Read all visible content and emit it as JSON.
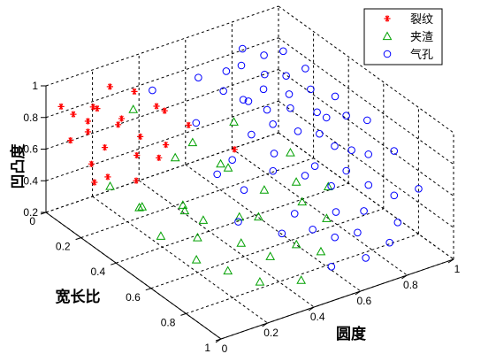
{
  "chart_data": {
    "type": "scatter",
    "projection": "3d",
    "xlabel": "圆度",
    "ylabel": "宽长比",
    "zlabel": "凹凸度",
    "xlim": [
      0,
      1
    ],
    "ylim": [
      0,
      1
    ],
    "zlim": [
      0.2,
      1
    ],
    "xticks": [
      "0",
      "0.2",
      "0.4",
      "0.6",
      "0.8",
      "1"
    ],
    "yticks": [
      "0",
      "0.2",
      "0.4",
      "0.6",
      "0.8",
      "1"
    ],
    "zticks": [
      "0.2",
      "0.4",
      "0.6",
      "0.8",
      "1"
    ],
    "grid": true,
    "legend": "top-right",
    "series": [
      {
        "name": "裂纹",
        "marker": "asterisk",
        "color": "#ff0000",
        "points": [
          [
            0.05,
            0.02,
            0.86
          ],
          [
            0.08,
            0.05,
            0.82
          ],
          [
            0.12,
            0.08,
            0.78
          ],
          [
            0.03,
            0.1,
            0.72
          ],
          [
            0.18,
            0.03,
            0.8
          ],
          [
            0.22,
            0.12,
            0.74
          ],
          [
            0.28,
            0.06,
            0.7
          ],
          [
            0.35,
            0.04,
            0.82
          ],
          [
            0.14,
            0.15,
            0.66
          ],
          [
            0.06,
            0.18,
            0.62
          ],
          [
            0.24,
            0.2,
            0.6
          ],
          [
            0.1,
            0.22,
            0.55
          ],
          [
            0.3,
            0.14,
            0.64
          ],
          [
            0.4,
            0.1,
            0.75
          ],
          [
            0.2,
            0.25,
            0.5
          ],
          [
            0.16,
            0.08,
            0.84
          ],
          [
            0.45,
            0.08,
            0.68
          ],
          [
            0.02,
            0.25,
            0.58
          ],
          [
            0.32,
            0.22,
            0.56
          ],
          [
            0.5,
            0.15,
            0.62
          ],
          [
            0.6,
            0.28,
            0.52
          ],
          [
            0.26,
            0.02,
            0.88
          ],
          [
            0.09,
            0.12,
            0.76
          ],
          [
            0.38,
            0.18,
            0.58
          ]
        ]
      },
      {
        "name": "夹渣",
        "marker": "triangle",
        "color": "#00a000",
        "points": [
          [
            0.05,
            0.3,
            0.58
          ],
          [
            0.1,
            0.4,
            0.5
          ],
          [
            0.08,
            0.55,
            0.45
          ],
          [
            0.15,
            0.35,
            0.44
          ],
          [
            0.2,
            0.6,
            0.42
          ],
          [
            0.25,
            0.45,
            0.48
          ],
          [
            0.12,
            0.7,
            0.4
          ],
          [
            0.3,
            0.5,
            0.4
          ],
          [
            0.18,
            0.8,
            0.38
          ],
          [
            0.35,
            0.65,
            0.35
          ],
          [
            0.28,
            0.85,
            0.3
          ],
          [
            0.4,
            0.75,
            0.32
          ],
          [
            0.22,
            0.5,
            0.5
          ],
          [
            0.45,
            0.4,
            0.6
          ],
          [
            0.5,
            0.55,
            0.36
          ],
          [
            0.33,
            0.3,
            0.62
          ],
          [
            0.55,
            0.7,
            0.28
          ],
          [
            0.42,
            0.9,
            0.28
          ],
          [
            0.6,
            0.45,
            0.4
          ],
          [
            0.48,
            0.2,
            0.56
          ],
          [
            0.38,
            0.6,
            0.46
          ],
          [
            0.65,
            0.6,
            0.42
          ],
          [
            0.52,
            0.35,
            0.5
          ],
          [
            0.7,
            0.5,
            0.44
          ],
          [
            0.58,
            0.8,
            0.3
          ],
          [
            0.75,
            0.4,
            0.52
          ],
          [
            0.62,
            0.25,
            0.66
          ],
          [
            0.68,
            0.7,
            0.38
          ],
          [
            0.8,
            0.55,
            0.4
          ],
          [
            0.3,
            0.1,
            0.78
          ]
        ]
      },
      {
        "name": "气孔",
        "marker": "circle",
        "color": "#0000ff",
        "points": [
          [
            0.65,
            0.15,
            0.76
          ],
          [
            0.7,
            0.1,
            0.82
          ],
          [
            0.72,
            0.2,
            0.7
          ],
          [
            0.78,
            0.08,
            0.8
          ],
          [
            0.8,
            0.18,
            0.72
          ],
          [
            0.75,
            0.3,
            0.62
          ],
          [
            0.85,
            0.12,
            0.74
          ],
          [
            0.88,
            0.22,
            0.68
          ],
          [
            0.82,
            0.35,
            0.58
          ],
          [
            0.9,
            0.05,
            0.78
          ],
          [
            0.92,
            0.15,
            0.72
          ],
          [
            0.68,
            0.4,
            0.55
          ],
          [
            0.95,
            0.25,
            0.7
          ],
          [
            0.86,
            0.42,
            0.6
          ],
          [
            0.78,
            0.5,
            0.5
          ],
          [
            0.92,
            0.38,
            0.64
          ],
          [
            0.96,
            0.08,
            0.8
          ],
          [
            0.74,
            0.28,
            0.7
          ],
          [
            0.84,
            0.28,
            0.66
          ],
          [
            0.98,
            0.18,
            0.76
          ],
          [
            0.62,
            0.35,
            0.66
          ],
          [
            0.88,
            0.48,
            0.56
          ],
          [
            0.76,
            0.62,
            0.48
          ],
          [
            0.94,
            0.3,
            0.6
          ],
          [
            0.8,
            0.06,
            0.88
          ],
          [
            0.7,
            0.55,
            0.52
          ],
          [
            0.66,
            0.25,
            0.78
          ],
          [
            0.9,
            0.55,
            0.58
          ],
          [
            0.58,
            0.65,
            0.42
          ],
          [
            0.96,
            0.44,
            0.68
          ],
          [
            0.72,
            0.7,
            0.4
          ],
          [
            0.84,
            0.6,
            0.52
          ],
          [
            0.6,
            0.5,
            0.56
          ],
          [
            0.98,
            0.35,
            0.72
          ],
          [
            0.86,
            0.7,
            0.5
          ],
          [
            0.64,
            0.8,
            0.36
          ],
          [
            0.92,
            0.62,
            0.6
          ],
          [
            0.78,
            0.78,
            0.44
          ],
          [
            0.5,
            0.4,
            0.6
          ],
          [
            0.99,
            0.52,
            0.7
          ],
          [
            0.55,
            0.9,
            0.3
          ],
          [
            0.45,
            0.75,
            0.44
          ],
          [
            0.7,
            0.85,
            0.4
          ],
          [
            0.88,
            0.82,
            0.52
          ],
          [
            0.4,
            0.6,
            0.62
          ],
          [
            0.97,
            0.7,
            0.66
          ],
          [
            0.66,
            0.95,
            0.34
          ],
          [
            0.82,
            0.92,
            0.46
          ],
          [
            0.36,
            0.5,
            0.66
          ],
          [
            0.94,
            0.88,
            0.58
          ],
          [
            0.74,
            0.98,
            0.42
          ],
          [
            0.3,
            0.7,
            0.55
          ],
          [
            0.58,
            0.1,
            0.84
          ],
          [
            0.48,
            0.22,
            0.7
          ],
          [
            0.42,
            0.05,
            0.8
          ],
          [
            0.62,
            0.7,
            0.34
          ]
        ]
      }
    ]
  }
}
